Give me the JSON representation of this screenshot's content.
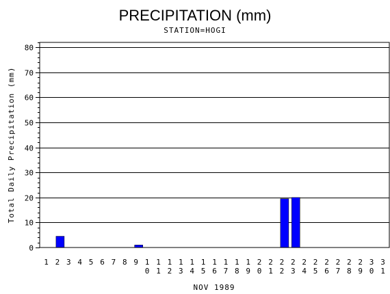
{
  "chart_data": {
    "type": "bar",
    "title": "PRECIPITATION (mm)",
    "subtitle": "STATION=HOGI",
    "xlabel": "NOV 1989",
    "ylabel": "Total Daily Precipitation (mm)",
    "ylim": [
      0,
      82
    ],
    "yticks": [
      0,
      10,
      20,
      30,
      40,
      50,
      60,
      70,
      80
    ],
    "grid": true,
    "bar_color": "#0000ff",
    "categories": [
      "1",
      "2",
      "3",
      "4",
      "5",
      "6",
      "7",
      "8",
      "9",
      "10",
      "11",
      "12",
      "13",
      "14",
      "15",
      "16",
      "17",
      "18",
      "19",
      "20",
      "21",
      "22",
      "23",
      "24",
      "25",
      "26",
      "27",
      "28",
      "29",
      "30",
      "31"
    ],
    "values": [
      0,
      4.5,
      0,
      0,
      0,
      0,
      0,
      0,
      1,
      0,
      0,
      0,
      0,
      0,
      0,
      0,
      0,
      0,
      0,
      0,
      0,
      19.5,
      20,
      0,
      0,
      0,
      0,
      0,
      0,
      0,
      0
    ]
  }
}
